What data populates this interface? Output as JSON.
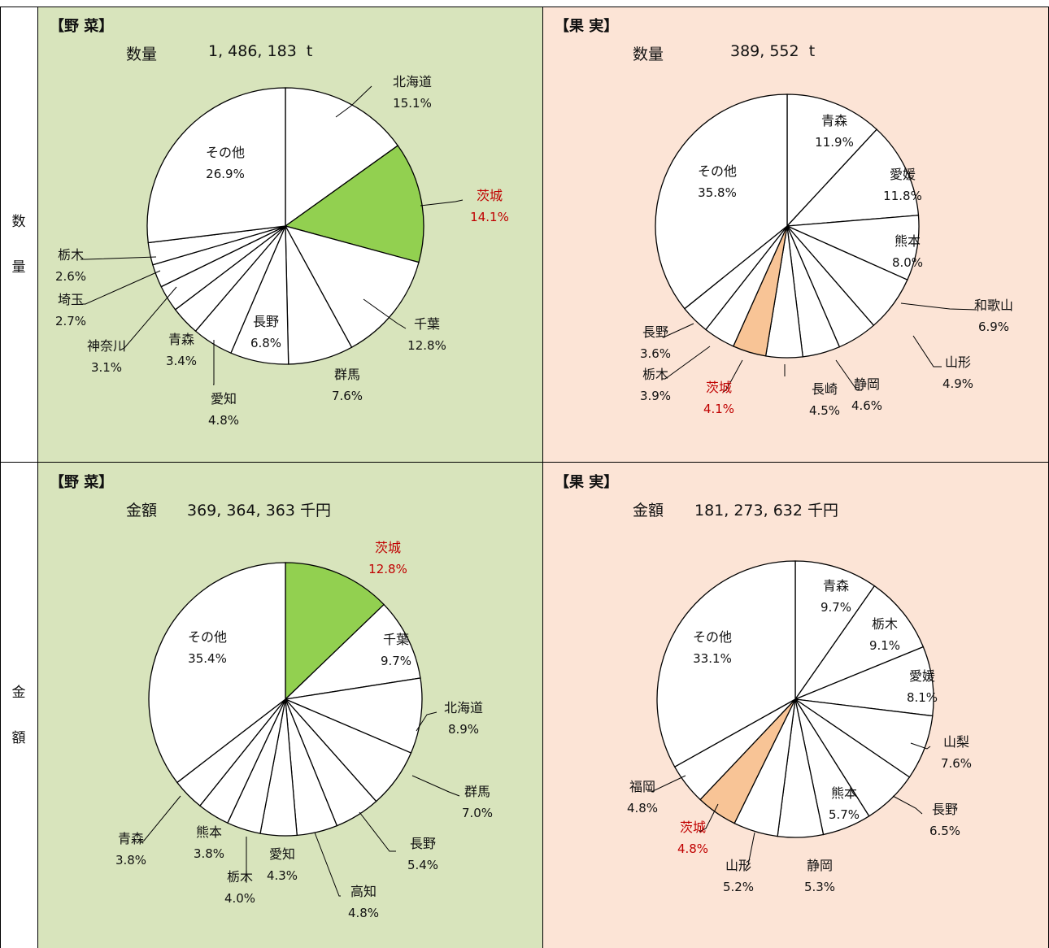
{
  "row_labels": [
    {
      "chars": [
        "数",
        "量"
      ]
    },
    {
      "chars": [
        "金",
        "額"
      ]
    }
  ],
  "colors": {
    "veg_bg": "#d8e4bc",
    "fruit_bg": "#fce4d6",
    "veg_highlight": "#92d050",
    "fruit_highlight": "#f8c496",
    "highlight_text": "#c00000"
  },
  "panels": {
    "veg_qty": {
      "header": "【野 菜】",
      "sublabel": "数量",
      "subvalue": "1, 486, 183  t"
    },
    "fruit_qty": {
      "header": "【果 実】",
      "sublabel": "数量",
      "subvalue": "389, 552  t"
    },
    "veg_val": {
      "header": "【野 菜】",
      "sublabel": "金額",
      "subvalue": "369, 364, 363 千円"
    },
    "fruit_val": {
      "header": "【果 実】",
      "sublabel": "金額",
      "subvalue": "181, 273, 632 千円"
    }
  },
  "chart_data": [
    {
      "id": "veg_qty",
      "type": "pie",
      "title": "【野 菜】",
      "slices": [
        {
          "name": "北海道",
          "value": "15.1%",
          "pct": 15.1
        },
        {
          "name": "茨城",
          "value": "14.1%",
          "pct": 14.1,
          "highlight": true
        },
        {
          "name": "千葉",
          "value": "12.8%",
          "pct": 12.8
        },
        {
          "name": "群馬",
          "value": "7.6%",
          "pct": 7.6
        },
        {
          "name": "長野",
          "value": "6.8%",
          "pct": 6.8
        },
        {
          "name": "愛知",
          "value": "4.8%",
          "pct": 4.8
        },
        {
          "name": "青森",
          "value": "3.4%",
          "pct": 3.4
        },
        {
          "name": "神奈川",
          "value": "3.1%",
          "pct": 3.1
        },
        {
          "name": "埼玉",
          "value": "2.7%",
          "pct": 2.7
        },
        {
          "name": "栃木",
          "value": "2.6%",
          "pct": 2.6
        },
        {
          "name": "その他",
          "value": "26.9%",
          "pct": 26.9
        }
      ]
    },
    {
      "id": "fruit_qty",
      "type": "pie",
      "title": "【果 実】",
      "slices": [
        {
          "name": "青森",
          "value": "11.9%",
          "pct": 11.9
        },
        {
          "name": "愛媛",
          "value": "11.8%",
          "pct": 11.8
        },
        {
          "name": "熊本",
          "value": "8.0%",
          "pct": 8.0
        },
        {
          "name": "和歌山",
          "value": "6.9%",
          "pct": 6.9
        },
        {
          "name": "山形",
          "value": "4.9%",
          "pct": 4.9
        },
        {
          "name": "静岡",
          "value": "4.6%",
          "pct": 4.6
        },
        {
          "name": "長崎",
          "value": "4.5%",
          "pct": 4.5
        },
        {
          "name": "茨城",
          "value": "4.1%",
          "pct": 4.1,
          "highlight": true
        },
        {
          "name": "栃木",
          "value": "3.9%",
          "pct": 3.9
        },
        {
          "name": "長野",
          "value": "3.6%",
          "pct": 3.6
        },
        {
          "name": "その他",
          "value": "35.8%",
          "pct": 35.8
        }
      ]
    },
    {
      "id": "veg_val",
      "type": "pie",
      "title": "【野 菜】",
      "slices": [
        {
          "name": "茨城",
          "value": "12.8%",
          "pct": 12.8,
          "highlight": true
        },
        {
          "name": "千葉",
          "value": "9.7%",
          "pct": 9.7
        },
        {
          "name": "北海道",
          "value": "8.9%",
          "pct": 8.9
        },
        {
          "name": "群馬",
          "value": "7.0%",
          "pct": 7.0
        },
        {
          "name": "長野",
          "value": "5.4%",
          "pct": 5.4
        },
        {
          "name": "高知",
          "value": "4.8%",
          "pct": 4.8
        },
        {
          "name": "愛知",
          "value": "4.3%",
          "pct": 4.3
        },
        {
          "name": "栃木",
          "value": "4.0%",
          "pct": 4.0
        },
        {
          "name": "熊本",
          "value": "3.8%",
          "pct": 3.8
        },
        {
          "name": "青森",
          "value": "3.8%",
          "pct": 3.8
        },
        {
          "name": "その他",
          "value": "35.4%",
          "pct": 35.4
        }
      ]
    },
    {
      "id": "fruit_val",
      "type": "pie",
      "title": "【果 実】",
      "slices": [
        {
          "name": "青森",
          "value": "9.7%",
          "pct": 9.7
        },
        {
          "name": "栃木",
          "value": "9.1%",
          "pct": 9.1
        },
        {
          "name": "愛媛",
          "value": "8.1%",
          "pct": 8.1
        },
        {
          "name": "山梨",
          "value": "7.6%",
          "pct": 7.6
        },
        {
          "name": "長野",
          "value": "6.5%",
          "pct": 6.5
        },
        {
          "name": "熊本",
          "value": "5.7%",
          "pct": 5.7
        },
        {
          "name": "静岡",
          "value": "5.3%",
          "pct": 5.3
        },
        {
          "name": "山形",
          "value": "5.2%",
          "pct": 5.2
        },
        {
          "name": "茨城",
          "value": "4.8%",
          "pct": 4.8,
          "highlight": true
        },
        {
          "name": "福岡",
          "value": "4.8%",
          "pct": 4.8
        },
        {
          "name": "その他",
          "value": "33.1%",
          "pct": 33.1
        }
      ]
    }
  ]
}
